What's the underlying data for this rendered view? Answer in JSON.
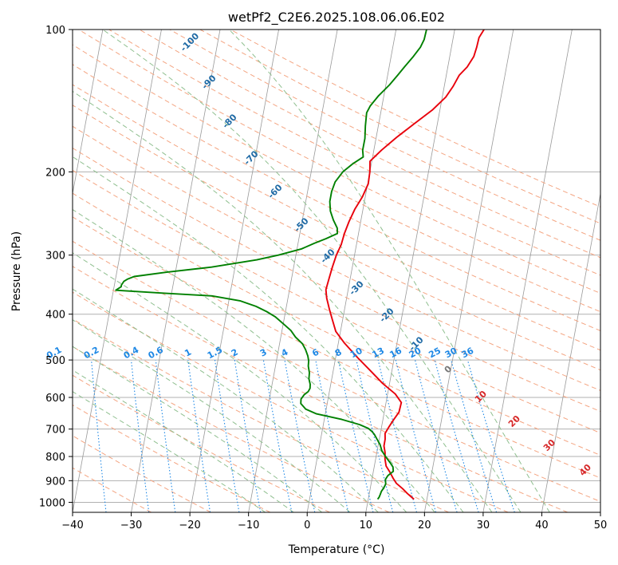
{
  "chart_data": {
    "type": "line",
    "title": "wetPf2_C2E6.2025.108.06.06.E02",
    "xlabel": "Temperature (°C)",
    "ylabel": "Pressure (hPa)",
    "xlim": [
      -40,
      50
    ],
    "ylim": [
      1050,
      100
    ],
    "y_scale": "log",
    "x_ticks": [
      -40,
      -30,
      -20,
      -10,
      0,
      10,
      20,
      30,
      40,
      50
    ],
    "y_ticks": [
      100,
      200,
      300,
      400,
      500,
      600,
      700,
      800,
      900,
      1000
    ],
    "grid": true,
    "series": [
      {
        "color": "#e8000b",
        "points": [
          [
            17.8,
            985
          ],
          [
            17.3,
            975
          ],
          [
            16.5,
            958
          ],
          [
            15.5,
            935
          ],
          [
            14.3,
            912
          ],
          [
            13.6,
            890
          ],
          [
            12.8,
            862
          ],
          [
            12.0,
            838
          ],
          [
            11.6,
            810
          ],
          [
            11.4,
            785
          ],
          [
            11.0,
            760
          ],
          [
            11.0,
            735
          ],
          [
            10.8,
            715
          ],
          [
            11.2,
            695
          ],
          [
            11.8,
            670
          ],
          [
            12.5,
            645
          ],
          [
            12.6,
            615
          ],
          [
            11.3,
            590
          ],
          [
            8.8,
            560
          ],
          [
            6.2,
            525
          ],
          [
            3.8,
            495
          ],
          [
            1.0,
            460
          ],
          [
            -0.8,
            435
          ],
          [
            -1.8,
            410
          ],
          [
            -2.6,
            390
          ],
          [
            -3.4,
            370
          ],
          [
            -3.8,
            355
          ],
          [
            -3.6,
            335
          ],
          [
            -3.4,
            318
          ],
          [
            -3.1,
            300
          ],
          [
            -2.6,
            285
          ],
          [
            -2.4,
            270
          ],
          [
            -2.0,
            255
          ],
          [
            -1.4,
            240
          ],
          [
            -0.5,
            226
          ],
          [
            0.1,
            212
          ],
          [
            0.0,
            200
          ],
          [
            -0.3,
            190
          ],
          [
            1.3,
            180
          ],
          [
            3.5,
            169
          ],
          [
            6.1,
            158
          ],
          [
            8.7,
            148
          ],
          [
            10.6,
            139
          ],
          [
            11.5,
            132
          ],
          [
            12.2,
            125
          ],
          [
            13.3,
            120
          ],
          [
            14.1,
            114
          ],
          [
            14.3,
            109
          ],
          [
            14.4,
            104
          ],
          [
            15.0,
            100
          ]
        ]
      },
      {
        "color": "#008000",
        "points": [
          [
            11.6,
            985
          ],
          [
            11.8,
            975
          ],
          [
            11.9,
            962
          ],
          [
            12.0,
            948
          ],
          [
            12.3,
            932
          ],
          [
            12.5,
            915
          ],
          [
            12.3,
            895
          ],
          [
            12.6,
            878
          ],
          [
            13.4,
            860
          ],
          [
            13.2,
            842
          ],
          [
            12.6,
            825
          ],
          [
            11.6,
            800
          ],
          [
            10.8,
            778
          ],
          [
            10.3,
            755
          ],
          [
            9.6,
            735
          ],
          [
            9.0,
            718
          ],
          [
            8.5,
            708
          ],
          [
            7.8,
            698
          ],
          [
            6.2,
            685
          ],
          [
            3.0,
            668
          ],
          [
            -1.5,
            650
          ],
          [
            -3.5,
            635
          ],
          [
            -4.5,
            618
          ],
          [
            -4.6,
            605
          ],
          [
            -4.2,
            592
          ],
          [
            -3.6,
            583
          ],
          [
            -3.4,
            574
          ],
          [
            -3.5,
            563
          ],
          [
            -3.9,
            548
          ],
          [
            -4.0,
            532
          ],
          [
            -4.4,
            515
          ],
          [
            -4.5,
            502
          ],
          [
            -4.8,
            490
          ],
          [
            -5.4,
            475
          ],
          [
            -6.1,
            462
          ],
          [
            -7.5,
            447
          ],
          [
            -8.5,
            433
          ],
          [
            -9.9,
            420
          ],
          [
            -11.6,
            405
          ],
          [
            -13.2,
            395
          ],
          [
            -15.2,
            385
          ],
          [
            -18.0,
            375
          ],
          [
            -23.0,
            366
          ],
          [
            -31.5,
            361
          ],
          [
            -39.6,
            356
          ],
          [
            -38.8,
            350
          ],
          [
            -38.8,
            347
          ],
          [
            -38.5,
            341
          ],
          [
            -37.9,
            337
          ],
          [
            -36.9,
            333
          ],
          [
            -31.5,
            326
          ],
          [
            -24.0,
            318
          ],
          [
            -16.5,
            307
          ],
          [
            -13.0,
            300
          ],
          [
            -9.2,
            291
          ],
          [
            -7.2,
            283
          ],
          [
            -5.4,
            277
          ],
          [
            -3.6,
            270
          ],
          [
            -3.8,
            263
          ],
          [
            -4.7,
            253
          ],
          [
            -5.5,
            242
          ],
          [
            -5.9,
            231
          ],
          [
            -5.9,
            220
          ],
          [
            -5.6,
            210
          ],
          [
            -4.6,
            200
          ],
          [
            -3.1,
            192
          ],
          [
            -1.6,
            186
          ],
          [
            -1.9,
            180
          ],
          [
            -1.9,
            170
          ],
          [
            -2.2,
            160
          ],
          [
            -2.4,
            150
          ],
          [
            -2.0,
            145
          ],
          [
            -0.9,
            138
          ],
          [
            0.6,
            131
          ],
          [
            1.7,
            125
          ],
          [
            2.6,
            120
          ],
          [
            3.8,
            114
          ],
          [
            4.7,
            109
          ],
          [
            5.1,
            105
          ],
          [
            5.2,
            100
          ]
        ]
      }
    ],
    "dry_adiabat_labels": [
      "-100",
      "-90",
      "-80",
      "-70",
      "-60",
      "-50",
      "-40",
      "-30",
      "-20",
      "-10",
      "0",
      "10",
      "20",
      "30",
      "40"
    ],
    "mixing_ratio_labels": [
      "0.1",
      "0.2",
      "0.4",
      "0.6",
      "1",
      "1.5",
      "2",
      "3",
      "4",
      "6",
      "8",
      "10",
      "13",
      "16",
      "20",
      "25",
      "30",
      "36"
    ]
  },
  "colors": {
    "dry_adiabat": "#f4a582",
    "moist_adiabat": "#8fbf8f",
    "mixing_ratio": "#1e88e5",
    "isotherm": "#999999",
    "label_cold": "#1f6aa5",
    "label_zero": "#777777",
    "label_warm": "#d62728"
  }
}
